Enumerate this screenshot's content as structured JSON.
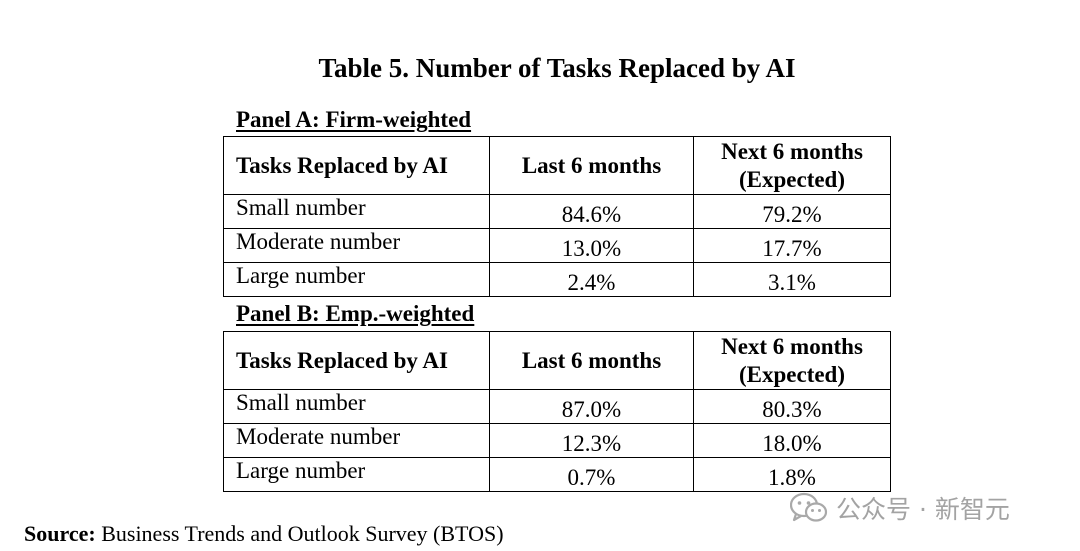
{
  "title": "Table 5. Number of Tasks Replaced by AI",
  "panels": [
    {
      "title": "Panel A: Firm-weighted",
      "headers": [
        "Tasks Replaced by AI",
        "Last 6 months",
        "Next 6 months",
        "(Expected)"
      ],
      "rows": [
        {
          "label": "Small number",
          "last": "84.6%",
          "next": "79.2%"
        },
        {
          "label": "Moderate number",
          "last": "13.0%",
          "next": "17.7%"
        },
        {
          "label": "Large number",
          "last": "2.4%",
          "next": "3.1%"
        }
      ]
    },
    {
      "title": "Panel B: Emp.-weighted",
      "headers": [
        "Tasks Replaced by AI",
        "Last 6 months",
        "Next 6 months",
        "(Expected)"
      ],
      "rows": [
        {
          "label": "Small number",
          "last": "87.0%",
          "next": "80.3%"
        },
        {
          "label": "Moderate number",
          "last": "12.3%",
          "next": "18.0%"
        },
        {
          "label": "Large number",
          "last": "0.7%",
          "next": "1.8%"
        }
      ]
    }
  ],
  "source": {
    "label": "Source:",
    "text": " Business Trends and Outlook Survey (BTOS)"
  },
  "watermark": {
    "text": "公众号 · 新智元",
    "icon": "wechat-icon"
  }
}
